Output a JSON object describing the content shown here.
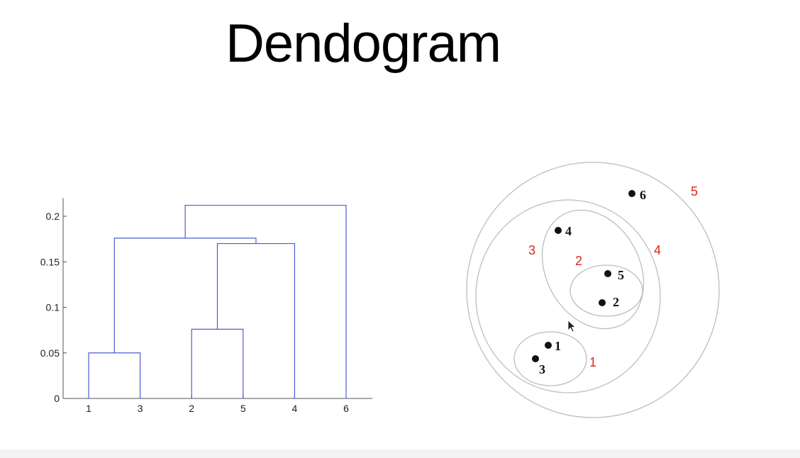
{
  "title": "Dendogram",
  "colors": {
    "link": "#4f5bd5",
    "axis": "#555555",
    "ring": "#bdbdbd",
    "cluster_label": "#e0261b"
  },
  "chart_data": {
    "type": "dendrogram",
    "title": "",
    "ylim": [
      0,
      0.22
    ],
    "yticks": [
      0,
      0.05,
      0.1,
      0.15,
      0.2
    ],
    "ytick_labels": [
      "0",
      "0.05",
      "0.1",
      "0.15",
      "0.2"
    ],
    "leaf_order": [
      "1",
      "3",
      "2",
      "5",
      "4",
      "6"
    ],
    "merges": [
      {
        "id": "m1",
        "left": "1",
        "right": "3",
        "height": 0.05
      },
      {
        "id": "m2",
        "left": "2",
        "right": "5",
        "height": 0.076
      },
      {
        "id": "m3",
        "left": "m2",
        "right": "4",
        "height": 0.17
      },
      {
        "id": "m4",
        "left": "m1",
        "right": "m3",
        "height": 0.176
      },
      {
        "id": "m5",
        "left": "m4",
        "right": "6",
        "height": 0.212
      }
    ]
  },
  "cluster_diagram": {
    "points": [
      {
        "id": "p1",
        "label": "1"
      },
      {
        "id": "p3",
        "label": "3"
      },
      {
        "id": "p2",
        "label": "2"
      },
      {
        "id": "p5",
        "label": "5"
      },
      {
        "id": "p4",
        "label": "4"
      },
      {
        "id": "p6",
        "label": "6"
      }
    ],
    "clusters": [
      {
        "id": "c1",
        "label": "1"
      },
      {
        "id": "c2",
        "label": "2"
      },
      {
        "id": "c3",
        "label": "3"
      },
      {
        "id": "c4",
        "label": "4"
      },
      {
        "id": "c5",
        "label": "5"
      }
    ]
  }
}
